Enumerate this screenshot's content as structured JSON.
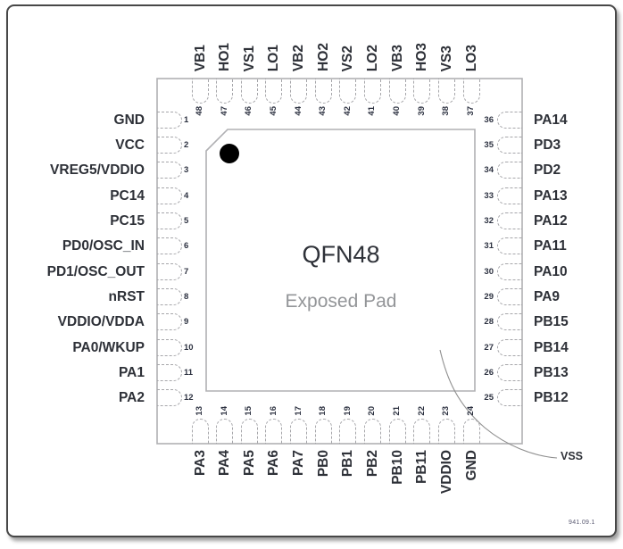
{
  "title": {
    "package": "QFN48",
    "pad": "Exposed Pad"
  },
  "annotations": {
    "vss": "VSS",
    "ref_code": "941.09.1"
  },
  "pins": {
    "left": [
      {
        "num": "1",
        "label": "GND"
      },
      {
        "num": "2",
        "label": "VCC"
      },
      {
        "num": "3",
        "label": "VREG5/VDDIO"
      },
      {
        "num": "4",
        "label": "PC14"
      },
      {
        "num": "5",
        "label": "PC15"
      },
      {
        "num": "6",
        "label": "PD0/OSC_IN"
      },
      {
        "num": "7",
        "label": "PD1/OSC_OUT"
      },
      {
        "num": "8",
        "label": "nRST"
      },
      {
        "num": "9",
        "label": "VDDIO/VDDA"
      },
      {
        "num": "10",
        "label": "PA0/WKUP"
      },
      {
        "num": "11",
        "label": "PA1"
      },
      {
        "num": "12",
        "label": "PA2"
      }
    ],
    "right": [
      {
        "num": "36",
        "label": "PA14"
      },
      {
        "num": "35",
        "label": "PD3"
      },
      {
        "num": "34",
        "label": "PD2"
      },
      {
        "num": "33",
        "label": "PA13"
      },
      {
        "num": "32",
        "label": "PA12"
      },
      {
        "num": "31",
        "label": "PA11"
      },
      {
        "num": "30",
        "label": "PA10"
      },
      {
        "num": "29",
        "label": "PA9"
      },
      {
        "num": "28",
        "label": "PB15"
      },
      {
        "num": "27",
        "label": "PB14"
      },
      {
        "num": "26",
        "label": "PB13"
      },
      {
        "num": "25",
        "label": "PB12"
      }
    ],
    "top": [
      {
        "num": "48",
        "label": "VB1"
      },
      {
        "num": "47",
        "label": "HO1"
      },
      {
        "num": "46",
        "label": "VS1"
      },
      {
        "num": "45",
        "label": "LO1"
      },
      {
        "num": "44",
        "label": "VB2"
      },
      {
        "num": "43",
        "label": "HO2"
      },
      {
        "num": "42",
        "label": "VS2"
      },
      {
        "num": "41",
        "label": "LO2"
      },
      {
        "num": "40",
        "label": "VB3"
      },
      {
        "num": "39",
        "label": "HO3"
      },
      {
        "num": "38",
        "label": "VS3"
      },
      {
        "num": "37",
        "label": "LO3"
      }
    ],
    "bottom": [
      {
        "num": "13",
        "label": "PA3"
      },
      {
        "num": "14",
        "label": "PA4"
      },
      {
        "num": "15",
        "label": "PA5"
      },
      {
        "num": "16",
        "label": "PA6"
      },
      {
        "num": "17",
        "label": "PA7"
      },
      {
        "num": "18",
        "label": "PB0"
      },
      {
        "num": "19",
        "label": "PB1"
      },
      {
        "num": "20",
        "label": "PB2"
      },
      {
        "num": "21",
        "label": "PB10"
      },
      {
        "num": "22",
        "label": "PB11"
      },
      {
        "num": "23",
        "label": "VDDIO"
      },
      {
        "num": "24",
        "label": "GND"
      }
    ]
  },
  "colors": {
    "outline_gray": "#b0b0b3",
    "pin_dash_gray": "#a6a6aa",
    "label_text": "#2e3138",
    "pin_number_text": "#2c3140",
    "pad_label_gray": "#939598",
    "pin1_dot": "#000000",
    "leader_line": "#8f8f8f",
    "frame_border": "#474747"
  }
}
